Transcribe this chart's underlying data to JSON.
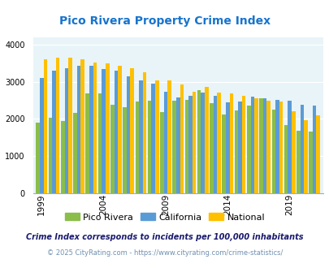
{
  "title": "Pico Rivera Property Crime Index",
  "title_color": "#1874CD",
  "years": [
    1999,
    2000,
    2001,
    2002,
    2003,
    2004,
    2005,
    2006,
    2007,
    2008,
    2009,
    2010,
    2011,
    2012,
    2013,
    2014,
    2015,
    2016,
    2017,
    2018,
    2019,
    2020,
    2021
  ],
  "pico_rivera": [
    1900,
    2030,
    1950,
    2170,
    2680,
    2700,
    2390,
    2320,
    2470,
    2500,
    2190,
    2500,
    2520,
    2770,
    2420,
    2120,
    2230,
    2360,
    2550,
    2250,
    1840,
    1680,
    1650
  ],
  "california": [
    3110,
    3310,
    3360,
    3440,
    3440,
    3340,
    3310,
    3150,
    3040,
    2960,
    2740,
    2590,
    2630,
    2720,
    2620,
    2450,
    2470,
    2600,
    2560,
    2520,
    2500,
    2390,
    2370
  ],
  "national": [
    3620,
    3650,
    3650,
    3610,
    3520,
    3500,
    3440,
    3360,
    3260,
    3050,
    3050,
    2940,
    2730,
    2860,
    2720,
    2700,
    2620,
    2550,
    2490,
    2460,
    2200,
    1960,
    2100
  ],
  "pico_color": "#8BBD4A",
  "california_color": "#5B9BD5",
  "national_color": "#FFC000",
  "background_color": "#E8F4F8",
  "ylim": [
    0,
    4200
  ],
  "yticks": [
    0,
    1000,
    2000,
    3000,
    4000
  ],
  "xtick_labels": [
    "1999",
    "2004",
    "2009",
    "2014",
    "2019"
  ],
  "xtick_positions": [
    1999,
    2004,
    2009,
    2014,
    2019
  ],
  "legend_labels": [
    "Pico Rivera",
    "California",
    "National"
  ],
  "footnote1": "Crime Index corresponds to incidents per 100,000 inhabitants",
  "footnote2": "© 2025 CityRating.com - https://www.cityrating.com/crime-statistics/",
  "footnote1_color": "#1a1a6e",
  "footnote2_color": "#7090B0"
}
